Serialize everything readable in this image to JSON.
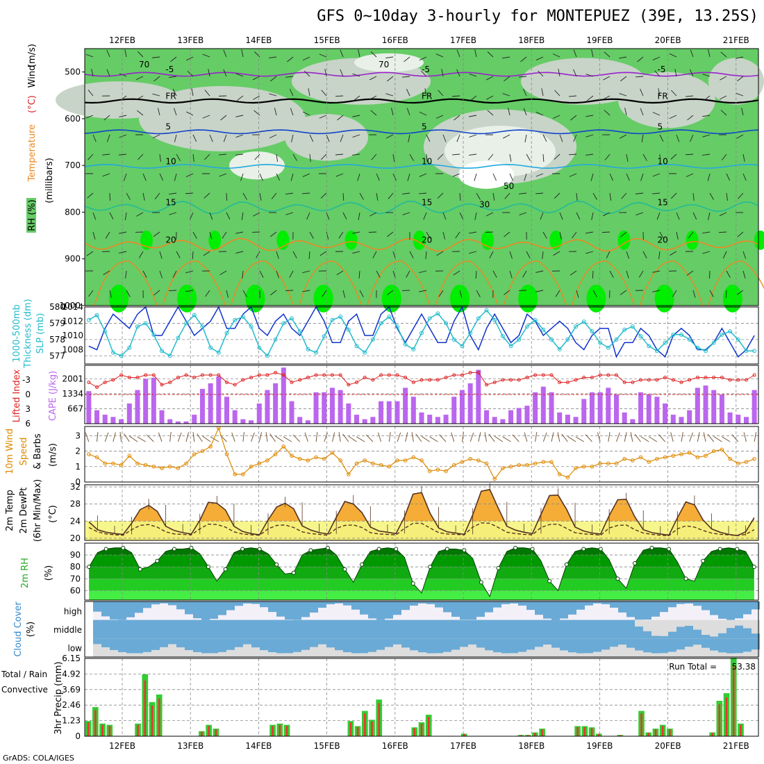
{
  "title": "GFS 0~10day 3-hourly for MONTEPUEZ (39E, 13.25S)",
  "footer": "GrADS: COLA/IGES",
  "dates": [
    "12FEB",
    "13FEB",
    "14FEB",
    "15FEB",
    "16FEB",
    "17FEB",
    "18FEB",
    "19FEB",
    "20FEB",
    "21FEB"
  ],
  "colors": {
    "rh_light": "#e8f0e8",
    "rh_grey": "#c8d4c8",
    "rh_green": "#66cc66",
    "rh_bright": "#00ee00",
    "slp": "#1133cc",
    "thickness": "#22bbcc",
    "lifted_index": "#dd2222",
    "cape": "#bb66ee",
    "wind10m": "#dd8800",
    "temp_fill": "#f5ad38",
    "temp_fill_hot": "#ee6600",
    "dew_fill": "#f5f580",
    "rh2m_dark": "#007700",
    "rh2m_light": "#33dd33",
    "cloud": "#6aaad6",
    "precip_total": "#33cc33",
    "precip_conv": "#ee3333"
  },
  "chart_data": [
    {
      "type": "heatmap",
      "name": "cross-section",
      "left_labels": [
        "RH (%)",
        "Temperature",
        "(°C)",
        "Wind",
        "(m/s)"
      ],
      "ylabel": "(millibars)",
      "y_ticks": [
        500,
        600,
        700,
        800,
        900,
        1000
      ],
      "ylim": [
        450,
        1000
      ],
      "temperature_contours": [
        {
          "label": "-5",
          "level": 505,
          "color": "#9922cc"
        },
        {
          "label": "FR",
          "level": 562,
          "color": "#000000"
        },
        {
          "label": "5",
          "level": 628,
          "color": "#1144cc"
        },
        {
          "label": "10",
          "level": 702,
          "color": "#22aadd"
        },
        {
          "label": "15",
          "level": 790,
          "color": "#22bb99"
        },
        {
          "label": "20",
          "level": 870,
          "color": "#ee8822"
        }
      ],
      "rh_labels": [
        "70",
        "70",
        "30",
        "50"
      ]
    },
    {
      "type": "line",
      "name": "slp-thickness",
      "left_labels": [
        "1000-500mb",
        "Thickness (dm)"
      ],
      "right_labels": [
        "SLP (mb)"
      ],
      "y_ticks_left": [
        577,
        578,
        579,
        580
      ],
      "y_ticks_right": [
        1008,
        1010,
        1012,
        1014
      ],
      "ylim_left": [
        576.5,
        580
      ],
      "ylim_right": [
        1006,
        1014
      ],
      "series": [
        {
          "name": "SLP",
          "axis": "right",
          "values": [
            1008.5,
            1008,
            1011,
            1013,
            1012,
            1011,
            1013,
            1014,
            1010,
            1010,
            1012,
            1014,
            1012,
            1010,
            1011,
            1012,
            1014,
            1011,
            1011,
            1013,
            1014,
            1011,
            1010,
            1012,
            1013,
            1011,
            1010,
            1012,
            1014,
            1012,
            1009,
            1009,
            1012,
            1013,
            1010,
            1010,
            1013,
            1014,
            1011,
            1009,
            1011,
            1013,
            1011,
            1009,
            1009,
            1012,
            1014,
            1010,
            1008,
            1011,
            1013,
            1011,
            1009,
            1010,
            1013,
            1012,
            1010,
            1011,
            1012,
            1011,
            1009,
            1008,
            1010,
            1011,
            1011,
            1007,
            1009,
            1009,
            1011,
            1010,
            1008,
            1007,
            1010,
            1011,
            1010,
            1008,
            1008,
            1009,
            1011,
            1009,
            1007,
            1008,
            1010
          ]
        },
        {
          "name": "Thickness",
          "axis": "left",
          "values": [
            579.2,
            579.5,
            578.5,
            577.2,
            577,
            577.5,
            578.8,
            579,
            578.3,
            577.3,
            577,
            578.1,
            579,
            579.5,
            578.8,
            577.5,
            577.2,
            578.4,
            579.2,
            579.4,
            578.8,
            577.5,
            577,
            578,
            579,
            579.3,
            578.5,
            577.4,
            577.2,
            578.2,
            579.2,
            579.4,
            578.6,
            577.6,
            577.2,
            578,
            579,
            579.4,
            578.8,
            577.7,
            577.4,
            578.4,
            579.3,
            579.6,
            579,
            578,
            577.6,
            578.4,
            579.3,
            579.8,
            579.2,
            578.2,
            577.6,
            578,
            578.8,
            579.2,
            578.6,
            578,
            577.4,
            578,
            578.8,
            579.1,
            578.5,
            577.8,
            577.5,
            578,
            578.6,
            578.8,
            578.2,
            577.6,
            577.3,
            577.8,
            578.3,
            578.3,
            578,
            577.5,
            577.3,
            577.8,
            578.3,
            578.5,
            578,
            577.3,
            577.3
          ]
        }
      ]
    },
    {
      "type": "bar",
      "name": "cape-lifted-index",
      "left_labels": [
        "Lifted Index"
      ],
      "right_labels": [
        "CAPE (J/kg)"
      ],
      "y_ticks_left": [
        "-3",
        "0",
        "3",
        "6"
      ],
      "y_ticks_right": [
        667,
        1334,
        2001
      ],
      "ylim_cape": [
        0,
        2600
      ],
      "series": [
        {
          "name": "CAPE",
          "values": [
            1450,
            600,
            400,
            300,
            200,
            900,
            1500,
            2000,
            2050,
            600,
            200,
            100,
            100,
            400,
            1550,
            1800,
            2100,
            1200,
            600,
            200,
            150,
            900,
            1500,
            1800,
            2500,
            1000,
            300,
            150,
            1400,
            1400,
            1600,
            1500,
            900,
            400,
            200,
            300,
            1000,
            1000,
            1000,
            1600,
            1200,
            500,
            400,
            300,
            400,
            1200,
            1500,
            1800,
            2400,
            600,
            300,
            200,
            600,
            700,
            800,
            1400,
            1650,
            1400,
            500,
            400,
            300,
            1100,
            1400,
            1400,
            1600,
            1300,
            500,
            200,
            1400,
            1300,
            1200,
            900,
            400,
            300,
            600,
            1600,
            1700,
            1500,
            1300,
            500,
            400,
            300,
            1500
          ]
        },
        {
          "name": "Lifted Index",
          "values": [
            -2.5,
            -1.5,
            -2.5,
            -3,
            -4,
            -3.5,
            -3.5,
            -4,
            -4,
            -2,
            -2.5,
            -3.5,
            -4,
            -3.5,
            -4,
            -4,
            -4,
            -2.5,
            -2,
            -3,
            -3.5,
            -4,
            -4,
            -4.5,
            -4,
            -2.5,
            -3,
            -3.5,
            -4,
            -4,
            -4,
            -4,
            -2,
            -2.5,
            -3.5,
            -3,
            -4,
            -4,
            -4,
            -3.5,
            -2.5,
            -3,
            -3,
            -3,
            -3.5,
            -4,
            -4,
            -4.5,
            -4.5,
            -2,
            -2.5,
            -3,
            -3,
            -3,
            -3.5,
            -4,
            -4,
            -4,
            -2.5,
            -2.5,
            -3,
            -3.5,
            -3.5,
            -4,
            -4,
            -4,
            -2.5,
            -2.5,
            -3,
            -3,
            -3,
            -3.5,
            -3,
            -2.5,
            -3,
            -3.5,
            -3.5,
            -3.5,
            -3.5,
            -3,
            -3,
            -3,
            -4
          ]
        }
      ]
    },
    {
      "type": "line",
      "name": "10m-wind",
      "left_labels": [
        "10m Wind",
        "Speed"
      ],
      "left_labels_dark": [
        "& Barbs"
      ],
      "ylabel": "(m/s)",
      "y_ticks": [
        0,
        1,
        2,
        3
      ],
      "ylim": [
        0,
        3.6
      ],
      "series": [
        {
          "name": "Speed",
          "values": [
            1.8,
            1.6,
            1.2,
            1.2,
            1.1,
            1.7,
            1.2,
            1.1,
            1.0,
            0.9,
            1.0,
            0.9,
            1.2,
            1.8,
            2.0,
            2.3,
            3.5,
            1.8,
            0.5,
            0.5,
            1.0,
            1.2,
            1.4,
            1.8,
            2.3,
            1.7,
            1.5,
            1.4,
            1.6,
            1.5,
            1.9,
            1.4,
            0.5,
            1.2,
            1.4,
            1.2,
            1.1,
            1.0,
            1.4,
            1.4,
            1.6,
            1.4,
            0.7,
            0.8,
            0.7,
            1.1,
            1.3,
            1.5,
            1.4,
            1.2,
            0.2,
            0.9,
            1.0,
            1.1,
            1.1,
            1.2,
            1.3,
            1.3,
            0.5,
            0.3,
            0.9,
            1.0,
            1.0,
            1.2,
            1.2,
            1.2,
            1.5,
            1.4,
            1.6,
            1.3,
            1.5,
            1.6,
            1.7,
            1.8,
            1.9,
            1.6,
            1.7,
            2.0,
            2.1,
            1.5,
            1.2,
            1.3,
            1.5
          ]
        }
      ]
    },
    {
      "type": "area",
      "name": "2m-temp",
      "left_labels": [
        "2m Temp",
        "2m DewPt",
        "(6hr Min/Max)"
      ],
      "ylabel": "(°C)",
      "y_ticks": [
        20,
        24,
        28,
        32
      ],
      "ylim": [
        19.5,
        32.5
      ],
      "series": [
        {
          "name": "Temp",
          "values": [
            23.8,
            22.0,
            21.4,
            21.1,
            20.9,
            23.5,
            26.7,
            27.7,
            26.3,
            22.8,
            21.8,
            21.3,
            21.0,
            24.2,
            28.4,
            28.2,
            26.6,
            22.8,
            21.6,
            21.1,
            20.8,
            24.3,
            27.3,
            28.2,
            26.9,
            22.9,
            21.9,
            21.3,
            21.0,
            24.9,
            28.6,
            28.0,
            26.0,
            22.6,
            21.7,
            21.4,
            21.1,
            25.0,
            30.3,
            30.7,
            25.8,
            22.4,
            21.5,
            21.2,
            20.9,
            25.5,
            31.0,
            31.4,
            27.0,
            22.8,
            21.9,
            21.4,
            21.1,
            25.6,
            30.0,
            30.1,
            26.8,
            22.6,
            21.7,
            21.2,
            21.0,
            25.3,
            29.0,
            29.1,
            25.0,
            22.0,
            21.3,
            21.0,
            20.7,
            24.8,
            28.5,
            27.8,
            24.3,
            22.2,
            21.4,
            20.9,
            20.6,
            21.5,
            24.8
          ]
        },
        {
          "name": "DewPt",
          "values": [
            22.5,
            21.5,
            21.0,
            20.8,
            20.7,
            22.0,
            23.0,
            23.2,
            22.6,
            21.5,
            21.0,
            20.9,
            20.8,
            22.2,
            23.3,
            23.2,
            22.6,
            21.5,
            21.0,
            20.8,
            20.7,
            22.2,
            23.0,
            23.1,
            22.5,
            21.5,
            21.1,
            20.9,
            20.7,
            22.3,
            23.0,
            23.1,
            22.5,
            21.3,
            21.0,
            20.9,
            20.8,
            22.3,
            23.5,
            23.5,
            22.4,
            21.3,
            21.0,
            20.9,
            20.8,
            22.6,
            23.6,
            23.5,
            22.5,
            21.4,
            21.1,
            20.9,
            20.8,
            22.5,
            23.2,
            23.3,
            22.3,
            21.3,
            21.0,
            20.9,
            20.7,
            22.4,
            23.0,
            23.1,
            22.0,
            21.2,
            20.9,
            20.7,
            20.6,
            22.2,
            22.9,
            22.6,
            21.8,
            21.2,
            20.9,
            20.8,
            20.6,
            20.9,
            22.0
          ]
        }
      ]
    },
    {
      "type": "area",
      "name": "2m-rh",
      "left_labels": [
        "2m RH"
      ],
      "ylabel": "(%)",
      "y_ticks": [
        60,
        70,
        80,
        90
      ],
      "ylim": [
        52,
        100
      ],
      "series": [
        {
          "name": "RH",
          "values": [
            80,
            92,
            95,
            96,
            96,
            92,
            78,
            80,
            85,
            93,
            95,
            95,
            96,
            91,
            80,
            68,
            78,
            92,
            95,
            96,
            95,
            91,
            82,
            74,
            75,
            90,
            94,
            95,
            96,
            90,
            78,
            67,
            82,
            93,
            95,
            96,
            95,
            88,
            66,
            58,
            80,
            93,
            95,
            95,
            94,
            87,
            67,
            55,
            79,
            93,
            96,
            96,
            95,
            85,
            68,
            60,
            82,
            93,
            95,
            96,
            95,
            86,
            70,
            62,
            83,
            94,
            96,
            96,
            95,
            84,
            70,
            68,
            85,
            93,
            95,
            96,
            95,
            93,
            80
          ]
        }
      ]
    },
    {
      "type": "area",
      "name": "cloud-cover",
      "left_labels": [
        "Cloud Cover"
      ],
      "ylabel": "(%)",
      "levels": [
        "high",
        "middle",
        "low"
      ]
    },
    {
      "type": "bar",
      "name": "precip",
      "left_labels": [
        "Total / Rain",
        "Convective"
      ],
      "ylabel": "3hr Precip (mm)",
      "y_ticks": [
        0,
        1.23,
        2.46,
        3.69,
        4.92,
        6.15
      ],
      "ylim": [
        0,
        6.15
      ],
      "run_total_label": "Run Total =",
      "run_total": "53.38",
      "series": [
        {
          "name": "Total",
          "values": [
            1.2,
            2.3,
            1.0,
            0.9,
            0,
            0,
            0,
            1.0,
            4.9,
            2.7,
            3.3,
            0,
            0,
            0,
            0,
            0,
            0.4,
            0.9,
            0.6,
            0,
            0,
            0,
            0,
            0,
            0,
            0,
            0.9,
            1.0,
            0.9,
            0,
            0,
            0,
            0,
            0,
            0,
            0,
            0,
            1.2,
            0.8,
            2.0,
            1.3,
            2.9,
            0,
            0,
            0,
            0,
            0.7,
            1.1,
            1.7,
            0,
            0,
            0,
            0,
            0.2,
            0,
            0,
            0,
            0,
            0,
            0,
            0,
            0.1,
            0.1,
            0.3,
            0.6,
            0,
            0,
            0,
            0,
            0.8,
            0.8,
            0.7,
            0.2,
            0,
            0,
            0.1,
            0,
            0,
            2.0,
            0.3,
            0.6,
            0.9,
            0.6,
            0,
            0,
            0,
            0,
            0,
            0.3,
            2.8,
            3.4,
            6.2,
            1.0,
            0,
            0
          ]
        }
      ]
    }
  ]
}
